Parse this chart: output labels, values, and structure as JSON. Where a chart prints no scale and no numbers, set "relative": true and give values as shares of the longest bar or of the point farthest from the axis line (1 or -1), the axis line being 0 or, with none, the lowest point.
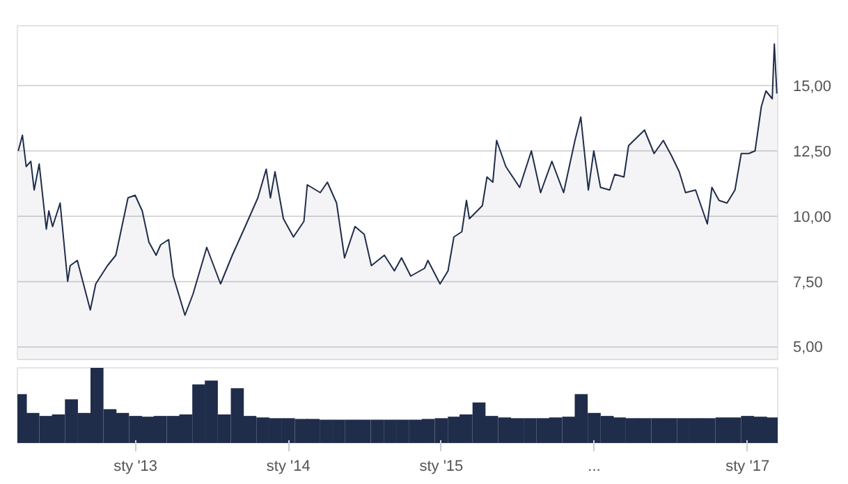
{
  "chart_data": [
    {
      "type": "area",
      "color": "#1f2d4a",
      "grid": "y",
      "tick_labels": "y",
      "xlim": [
        "2012-03-25",
        "2017-03-14"
      ],
      "ylim": [
        4.5,
        17.3
      ],
      "yticks": [
        {
          "value": 5,
          "label": "5,00"
        },
        {
          "value": 7.5,
          "label": "7,50"
        },
        {
          "value": 10,
          "label": "10,00"
        },
        {
          "value": 12.5,
          "label": "12,50"
        },
        {
          "value": 15,
          "label": "15,00"
        }
      ],
      "x": [
        "2012-03-27",
        "2012-04-06",
        "2012-04-15",
        "2012-04-26",
        "2012-05-04",
        "2012-05-16",
        "2012-06-02",
        "2012-06-08",
        "2012-06-17",
        "2012-07-05",
        "2012-07-23",
        "2012-07-29",
        "2012-08-15",
        "2012-09-15",
        "2012-09-28",
        "2012-10-26",
        "2012-11-15",
        "2012-12-14",
        "2012-12-31",
        "2013-01-17",
        "2013-02-02",
        "2013-02-19",
        "2013-03-02",
        "2013-03-21",
        "2013-04-01",
        "2013-04-29",
        "2013-05-18",
        "2013-06-20",
        "2013-07-23",
        "2013-08-20",
        "2013-09-17",
        "2013-10-20",
        "2013-11-09",
        "2013-11-19",
        "2013-11-30",
        "2013-12-20",
        "2014-01-13",
        "2014-02-07",
        "2014-02-15",
        "2014-03-18",
        "2014-04-04",
        "2014-04-26",
        "2014-05-15",
        "2014-06-09",
        "2014-07-01",
        "2014-07-18",
        "2014-08-18",
        "2014-09-11",
        "2014-09-28",
        "2014-10-20",
        "2014-11-22",
        "2014-11-30",
        "2014-12-29",
        "2015-01-17",
        "2015-01-31",
        "2015-02-19",
        "2015-03-02",
        "2015-03-09",
        "2015-04-09",
        "2015-04-20",
        "2015-05-04",
        "2015-05-13",
        "2015-06-04",
        "2015-07-07",
        "2015-08-04",
        "2015-08-26",
        "2015-09-22",
        "2015-10-20",
        "2015-11-16",
        "2015-11-30",
        "2015-12-18",
        "2015-12-31",
        "2016-01-16",
        "2016-02-07",
        "2016-02-19",
        "2016-03-12",
        "2016-03-23",
        "2016-04-30",
        "2016-05-23",
        "2016-06-14",
        "2016-07-04",
        "2016-07-22",
        "2016-08-06",
        "2016-08-30",
        "2016-09-27",
        "2016-10-08",
        "2016-10-25",
        "2016-11-13",
        "2016-12-02",
        "2016-12-17",
        "2017-01-04",
        "2017-01-19",
        "2017-02-03",
        "2017-02-14",
        "2017-03-01",
        "2017-03-06",
        "2017-03-12"
      ],
      "values": [
        12.5,
        13.1,
        11.9,
        12.1,
        11.0,
        12.0,
        9.5,
        10.2,
        9.6,
        10.5,
        7.5,
        8.1,
        8.3,
        6.4,
        7.4,
        8.1,
        8.5,
        10.7,
        10.8,
        10.2,
        9.0,
        8.5,
        8.9,
        9.1,
        7.7,
        6.2,
        7.0,
        8.8,
        7.4,
        8.5,
        9.5,
        10.7,
        11.8,
        10.7,
        11.7,
        9.9,
        9.2,
        9.8,
        11.2,
        10.9,
        11.3,
        10.5,
        8.4,
        9.6,
        9.3,
        8.1,
        8.5,
        7.9,
        8.4,
        7.7,
        8.0,
        8.3,
        7.4,
        7.9,
        9.2,
        9.4,
        10.6,
        9.9,
        10.4,
        11.5,
        11.3,
        12.9,
        11.9,
        11.1,
        12.5,
        10.9,
        12.1,
        10.9,
        12.9,
        13.8,
        11.0,
        12.5,
        11.1,
        11.0,
        11.6,
        11.5,
        12.7,
        13.3,
        12.4,
        12.9,
        12.3,
        11.7,
        10.9,
        11.0,
        9.7,
        11.1,
        10.6,
        10.5,
        11.0,
        12.4,
        12.4,
        12.5,
        14.2,
        14.8,
        14.5,
        16.6,
        14.7
      ]
    },
    {
      "type": "bar",
      "relative": true,
      "color": "#1f2d4a",
      "tick_labels": "x",
      "xlim": [
        "2012-03-25",
        "2017-03-14"
      ],
      "xticks": [
        {
          "value": "2013-01-01",
          "label": "sty '13"
        },
        {
          "value": "2014-01-01",
          "label": "sty '14"
        },
        {
          "value": "2015-01-01",
          "label": "sty '15"
        },
        {
          "value": "2016-01-01",
          "label": "..."
        },
        {
          "value": "2017-01-01",
          "label": "sty '17"
        }
      ],
      "x": [
        "2012-04",
        "2012-05",
        "2012-06",
        "2012-07",
        "2012-08",
        "2012-09",
        "2012-10",
        "2012-11",
        "2012-12",
        "2013-01",
        "2013-02",
        "2013-03",
        "2013-04",
        "2013-05",
        "2013-06",
        "2013-07",
        "2013-08",
        "2013-09",
        "2013-10",
        "2013-11",
        "2013-12",
        "2014-01",
        "2014-02",
        "2014-03",
        "2014-04",
        "2014-05",
        "2014-06",
        "2014-07",
        "2014-08",
        "2014-09",
        "2014-10",
        "2014-11",
        "2014-12",
        "2015-01",
        "2015-02",
        "2015-03",
        "2015-04",
        "2015-05",
        "2015-06",
        "2015-07",
        "2015-08",
        "2015-09",
        "2015-10",
        "2015-11",
        "2015-12",
        "2016-01",
        "2016-02",
        "2016-03",
        "2016-04",
        "2016-05",
        "2016-06",
        "2016-07",
        "2016-08",
        "2016-09",
        "2016-10",
        "2016-11",
        "2016-12",
        "2017-01",
        "2017-02",
        "2017-03"
      ],
      "values": [
        0.65,
        0.4,
        0.36,
        0.38,
        0.58,
        0.4,
        1.0,
        0.45,
        0.4,
        0.36,
        0.35,
        0.36,
        0.36,
        0.38,
        0.78,
        0.83,
        0.38,
        0.73,
        0.36,
        0.34,
        0.33,
        0.33,
        0.32,
        0.32,
        0.31,
        0.31,
        0.31,
        0.31,
        0.31,
        0.31,
        0.31,
        0.31,
        0.32,
        0.33,
        0.35,
        0.38,
        0.54,
        0.36,
        0.34,
        0.33,
        0.33,
        0.33,
        0.34,
        0.35,
        0.65,
        0.4,
        0.36,
        0.34,
        0.33,
        0.33,
        0.33,
        0.33,
        0.33,
        0.33,
        0.33,
        0.34,
        0.34,
        0.36,
        0.35,
        0.34
      ]
    }
  ]
}
